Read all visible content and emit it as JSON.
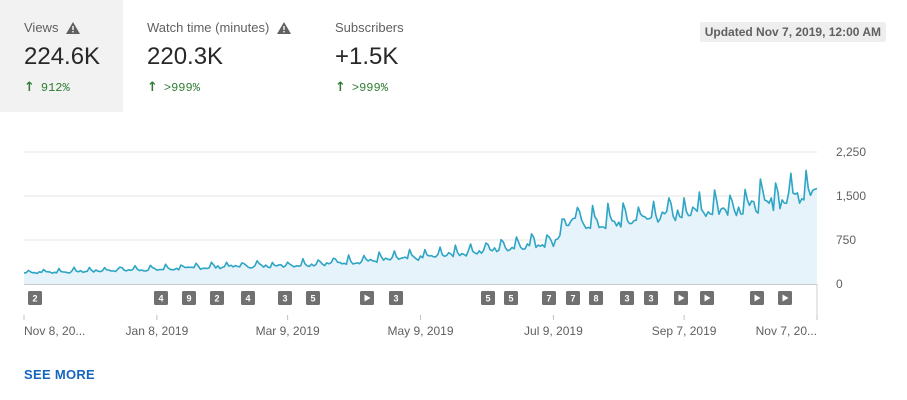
{
  "metrics": [
    {
      "label": "Views",
      "value": "224.6K",
      "change": "912%",
      "warning": true,
      "active": true
    },
    {
      "label": "Watch time (minutes)",
      "value": "220.3K",
      "change": ">999%",
      "warning": true,
      "active": false
    },
    {
      "label": "Subscribers",
      "value": "+1.5K",
      "change": ">999%",
      "warning": false,
      "active": false
    }
  ],
  "updated": "Updated Nov 7, 2019, 12:00 AM",
  "see_more": "SEE MORE",
  "colors": {
    "line": "#2ea5c4",
    "fill": "#e6f3fa",
    "positive": "#2e7d32",
    "link": "#1565c0"
  },
  "chart_data": {
    "type": "area",
    "ylim": [
      0,
      2250
    ],
    "yticks": [
      "2,250",
      "1,500",
      "750",
      "0"
    ],
    "ytick_values": [
      2250,
      1500,
      750,
      0
    ],
    "xlabels": [
      "Nov 8, 20...",
      "Jan 8, 2019",
      "Mar 9, 2019",
      "May 9, 2019",
      "Jul 9, 2019",
      "Sep 7, 2019",
      "Nov 7, 20..."
    ],
    "xlabel_dates": [
      "2018-11-08",
      "2019-01-08",
      "2019-03-09",
      "2019-05-09",
      "2019-07-09",
      "2019-09-07",
      "2019-11-07"
    ],
    "x_start": "2018-11-08",
    "x_end": "2019-11-07",
    "series": [
      {
        "values": [
          {
            "x": "2018-11-08",
            "y": 190
          },
          {
            "x": "2018-11-23",
            "y": 200
          },
          {
            "x": "2018-12-08",
            "y": 215
          },
          {
            "x": "2018-12-23",
            "y": 235
          },
          {
            "x": "2019-01-08",
            "y": 245
          },
          {
            "x": "2019-01-23",
            "y": 265
          },
          {
            "x": "2019-02-07",
            "y": 290
          },
          {
            "x": "2019-02-22",
            "y": 300
          },
          {
            "x": "2019-03-09",
            "y": 310
          },
          {
            "x": "2019-03-24",
            "y": 340
          },
          {
            "x": "2019-04-08",
            "y": 370
          },
          {
            "x": "2019-04-23",
            "y": 410
          },
          {
            "x": "2019-05-09",
            "y": 440
          },
          {
            "x": "2019-05-24",
            "y": 500
          },
          {
            "x": "2019-06-08",
            "y": 560
          },
          {
            "x": "2019-06-23",
            "y": 640
          },
          {
            "x": "2019-07-09",
            "y": 700
          },
          {
            "x": "2019-07-16",
            "y": 1050
          },
          {
            "x": "2019-07-31",
            "y": 1000
          },
          {
            "x": "2019-08-15",
            "y": 1070
          },
          {
            "x": "2019-08-30",
            "y": 1150
          },
          {
            "x": "2019-09-07",
            "y": 1190
          },
          {
            "x": "2019-09-22",
            "y": 1250
          },
          {
            "x": "2019-10-07",
            "y": 1300
          },
          {
            "x": "2019-10-22",
            "y": 1400
          },
          {
            "x": "2019-11-07",
            "y": 1620
          }
        ]
      }
    ],
    "markers": [
      {
        "label": "2",
        "type": "number"
      },
      {
        "label": "4",
        "type": "number"
      },
      {
        "label": "9",
        "type": "number"
      },
      {
        "label": "2",
        "type": "number"
      },
      {
        "label": "4",
        "type": "number"
      },
      {
        "label": "3",
        "type": "number"
      },
      {
        "label": "5",
        "type": "number"
      },
      {
        "label": "",
        "type": "play"
      },
      {
        "label": "3",
        "type": "number"
      },
      {
        "label": "5",
        "type": "number"
      },
      {
        "label": "5",
        "type": "number"
      },
      {
        "label": "7",
        "type": "number"
      },
      {
        "label": "7",
        "type": "number"
      },
      {
        "label": "8",
        "type": "number"
      },
      {
        "label": "3",
        "type": "number"
      },
      {
        "label": "3",
        "type": "number"
      },
      {
        "label": "",
        "type": "play"
      },
      {
        "label": "",
        "type": "play"
      },
      {
        "label": "",
        "type": "play"
      },
      {
        "label": "",
        "type": "play"
      }
    ]
  }
}
